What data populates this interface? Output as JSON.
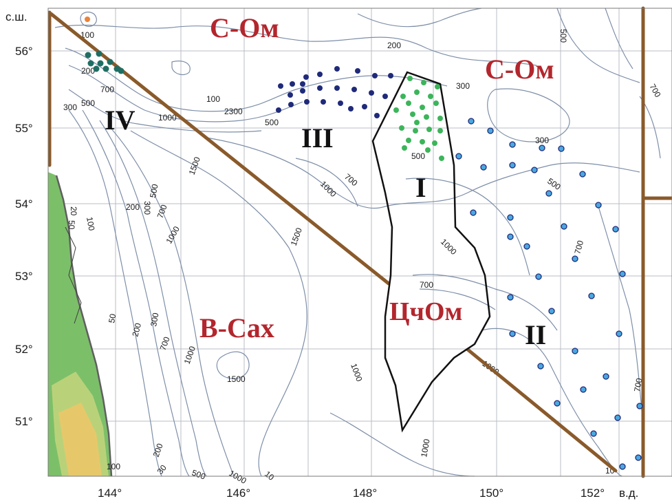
{
  "map": {
    "lat_labels": [
      "с.ш.",
      "56°",
      "55°",
      "54°",
      "53°",
      "52°",
      "51°"
    ],
    "lon_labels": [
      "144°",
      "146°",
      "148°",
      "150°",
      "152°",
      "в.д."
    ],
    "regions": {
      "s_om_west": "С-Ом",
      "s_om_east": "С-Ом",
      "v_sakh": "В-Сах",
      "tschom": "ЦчОм"
    },
    "zones": {
      "z1": "I",
      "z2": "II",
      "z3": "III",
      "z4": "IV"
    },
    "depth_labels": {
      "d100a": "100",
      "d200a": "200",
      "d700a": "700",
      "d500a": "500",
      "d300a": "300",
      "d1000a": "1000",
      "d100b": "100",
      "d2300": "2300",
      "d500b": "500",
      "d200b": "200",
      "d300b": "300",
      "d500c": "500",
      "d700b": "700",
      "d1000b": "1000",
      "d1500a": "1500",
      "d200c": "200",
      "d300c": "300",
      "d500d": "500",
      "d700c": "700",
      "d1000c": "1000",
      "d20": "20",
      "d50a": "50",
      "d100c": "100",
      "d1500b": "1500",
      "d1000d": "1000",
      "d300d": "300",
      "d500e": "500",
      "d500f": "500",
      "d700d": "700",
      "d700e": "700",
      "d1000e": "1000",
      "d1500c": "1500",
      "d1000f": "1000",
      "d200d": "200",
      "d300e": "300",
      "d50b": "50",
      "d200e": "200",
      "d700f": "700",
      "d1000g": "1000",
      "d1000h": "1000",
      "d700g": "700",
      "d1000i": "1000",
      "d200f": "200",
      "d30": "30",
      "d500g": "500",
      "d700h": "700",
      "d100d": "10",
      "d100e": "100",
      "d10": "10"
    },
    "colors": {
      "land": "#7cbf69",
      "highland": "#e6c86a",
      "coast": "#5f5f5f",
      "boundary": "#8a5a2b",
      "region_text": "#b3262d",
      "station_dark": "#1f2a7a",
      "station_green": "#3cb55a",
      "station_blue": "#4aa8e0",
      "station_teal": "#1f6e63",
      "contour": "#7d8ea8"
    }
  }
}
